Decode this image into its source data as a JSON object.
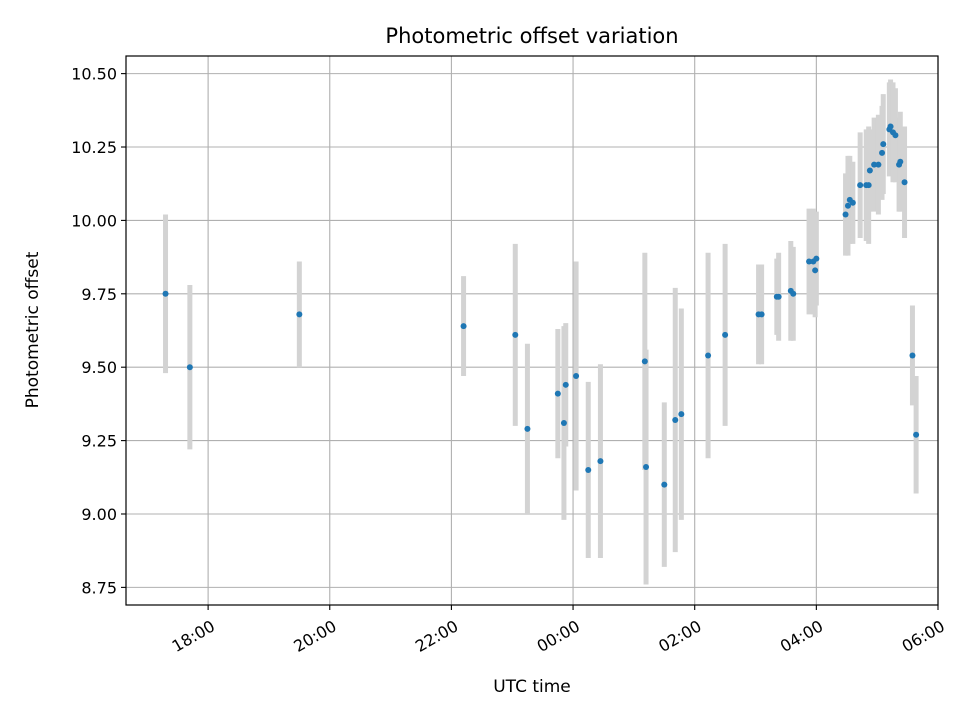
{
  "chart_data": {
    "type": "scatter",
    "title": "Photometric offset variation",
    "xlabel": "UTC time",
    "ylabel": "Photometric offset",
    "x_axis": "time (hours after 00:00 UTC)",
    "xlim": [
      -7.35,
      6.0
    ],
    "ylim": [
      8.69,
      10.56
    ],
    "yticks": [
      8.75,
      9.0,
      9.25,
      9.5,
      9.75,
      10.0,
      10.25,
      10.5
    ],
    "ytick_labels": [
      "8.75",
      "9.00",
      "9.25",
      "9.50",
      "9.75",
      "10.00",
      "10.25",
      "10.50"
    ],
    "xticks": [
      -6,
      -4,
      -2,
      0,
      2,
      4,
      6
    ],
    "xtick_labels": [
      "18:00",
      "20:00",
      "22:00",
      "00:00",
      "02:00",
      "04:00",
      "06:00"
    ],
    "grid": true,
    "marker_color": "#1f77b4",
    "errorbar_color": "#d3d3d3",
    "series": [
      {
        "x": [
          -6.7,
          -6.3,
          -4.5,
          -1.8,
          -0.95,
          -0.75,
          -0.25,
          -0.15,
          -0.12,
          0.05,
          0.25,
          0.45,
          1.18,
          1.2,
          1.5,
          1.68,
          1.78,
          2.22,
          2.5,
          3.05,
          3.1,
          3.35,
          3.38,
          3.58,
          3.62,
          3.88,
          3.95,
          3.98,
          4.0,
          4.48,
          4.52,
          4.55,
          4.6,
          4.72,
          4.82,
          4.86,
          4.88,
          4.95,
          5.02,
          5.08,
          5.1,
          5.2,
          5.22,
          5.26,
          5.3,
          5.36,
          5.38,
          5.45,
          5.58,
          5.64
        ],
        "y": [
          9.75,
          9.5,
          9.68,
          9.64,
          9.61,
          9.29,
          9.41,
          9.31,
          9.44,
          9.47,
          9.15,
          9.18,
          9.52,
          9.16,
          9.1,
          9.32,
          9.34,
          9.54,
          9.61,
          9.68,
          9.68,
          9.74,
          9.74,
          9.76,
          9.75,
          9.86,
          9.86,
          9.83,
          9.87,
          10.02,
          10.05,
          10.07,
          10.06,
          10.12,
          10.12,
          10.12,
          10.17,
          10.19,
          10.19,
          10.23,
          10.26,
          10.31,
          10.32,
          10.3,
          10.29,
          10.19,
          10.2,
          10.13,
          9.54,
          9.27
        ],
        "yerr": [
          0.27,
          0.28,
          0.18,
          0.17,
          0.31,
          0.29,
          0.22,
          0.33,
          0.21,
          0.39,
          0.3,
          0.33,
          0.37,
          0.4,
          0.28,
          0.45,
          0.36,
          0.35,
          0.31,
          0.17,
          0.17,
          0.13,
          0.15,
          0.17,
          0.16,
          0.18,
          0.18,
          0.16,
          0.16,
          0.14,
          0.17,
          0.15,
          0.14,
          0.18,
          0.19,
          0.2,
          0.14,
          0.16,
          0.17,
          0.16,
          0.17,
          0.16,
          0.16,
          0.17,
          0.16,
          0.16,
          0.17,
          0.19,
          0.17,
          0.2
        ]
      }
    ]
  }
}
